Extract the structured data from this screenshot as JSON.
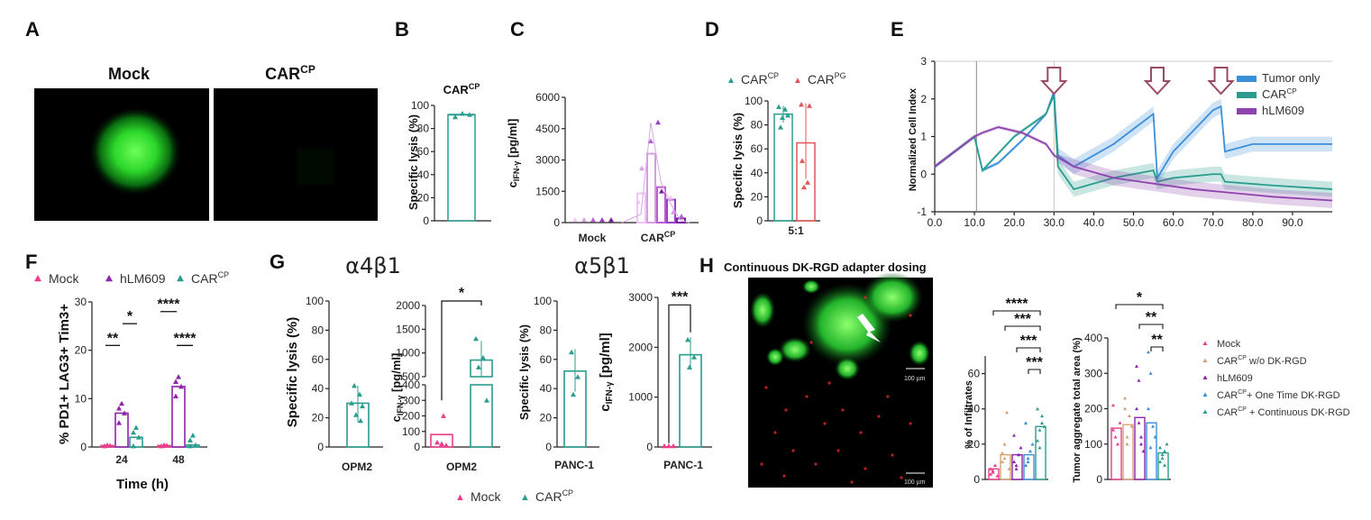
{
  "panels": {
    "A": {
      "label": "A",
      "mock": "Mock",
      "car": "CAR",
      "car_sup": "CP"
    },
    "B": {
      "label": "B",
      "title": "CAR",
      "title_sup": "CP",
      "ylabel": "Specific lysis (%)",
      "yticks": [
        "0",
        "20",
        "40",
        "60",
        "80",
        "100"
      ],
      "color": "#2a9d8f"
    },
    "C": {
      "label": "C",
      "ylabel_main": "c",
      "ylabel_sub": "IFN-γ",
      "ylabel_unit": " [pg/ml]",
      "yticks": [
        "0",
        "1500",
        "3000",
        "4500",
        "6000"
      ],
      "xcat1": "Mock",
      "xcat2": "CAR",
      "xcat2_sup": "CP"
    },
    "D": {
      "label": "D",
      "legend1": "CAR",
      "legend1_sup": "CP",
      "legend2": "CAR",
      "legend2_sup": "PG",
      "ylabel": "Specific lysis (%)",
      "yticks": [
        "0",
        "20",
        "40",
        "60",
        "80",
        "100"
      ],
      "xtick": "5:1"
    },
    "E": {
      "label": "E",
      "ylabel": "Normalized Cell Index",
      "yticks": [
        "-1",
        "0",
        "1",
        "2",
        "3"
      ],
      "xticks": [
        "0.0",
        "10.0",
        "20.0",
        "30.0",
        "40.0",
        "50.0",
        "60.0",
        "70.0",
        "80.0",
        "90.0"
      ],
      "legend": [
        {
          "name": "Tumor only",
          "color": "#3b8fd9"
        },
        {
          "name": "CAR",
          "sup": "CP",
          "color": "#2a9d8f"
        },
        {
          "name": "hLM609",
          "color": "#8e44ad"
        }
      ]
    },
    "F": {
      "label": "F",
      "legend": [
        {
          "name": "Mock",
          "color": "#e83e8c"
        },
        {
          "name": "hLM609",
          "color": "#8e24aa"
        },
        {
          "name": "CAR",
          "sup": "CP",
          "color": "#2a9d8f"
        }
      ],
      "ylabel": "% PD1+ LAG3+ Tim3+",
      "yticks": [
        "0",
        "10",
        "20",
        "30"
      ],
      "xticks": [
        "24",
        "48"
      ],
      "xlabel": "Time (h)",
      "sig": [
        "**",
        "*",
        "****",
        "****"
      ]
    },
    "G": {
      "label": "G",
      "alpha4": "α4β1",
      "alpha5": "α5β1",
      "ylab_lysis": "Specific lysis (%)",
      "ylab_ifn_main": "c",
      "ylab_ifn_sub": "IFN-γ",
      "ylab_ifn_unit": " [pg/ml]",
      "g1_yticks": [
        "0",
        "20",
        "40",
        "60",
        "80",
        "100"
      ],
      "g1_x": "OPM2",
      "g2_yticks_low": [
        "0",
        "100",
        "200",
        "300",
        "400"
      ],
      "g2_yticks_high": [
        "500",
        "1000",
        "1500",
        "2000"
      ],
      "g2_x": "OPM2",
      "g2_sig": "*",
      "g3_yticks": [
        "0",
        "20",
        "40",
        "60",
        "80",
        "100"
      ],
      "g3_x": "PANC-1",
      "g4_yticks": [
        "0",
        "1000",
        "2000",
        "3000"
      ],
      "g4_x": "PANC-1",
      "g4_sig": "***",
      "legend_mock": "Mock",
      "legend_car": "CAR",
      "legend_car_sup": "CP"
    },
    "H": {
      "label": "H",
      "title": "Continuous DK-RGD adapter dosing",
      "scale1": "100 µm",
      "scale2": "100 µm",
      "h1_ylabel": "% of Infiltrates",
      "h1_yticks": [
        "0",
        "20",
        "40",
        "60"
      ],
      "h1_sig": [
        "****",
        "***",
        "***",
        "***"
      ],
      "h2_ylabel": "Tumor aggregate total area (%)",
      "h2_yticks": [
        "0",
        "100",
        "200",
        "300",
        "400"
      ],
      "h2_sig": [
        "*",
        "**",
        "**"
      ],
      "legend": [
        {
          "name": "Mock",
          "color": "#e83e8c"
        },
        {
          "name": "CAR",
          "sup": "CP",
          "suffix": " w/o DK-RGD",
          "color": "#d4a373"
        },
        {
          "name": "hLM609",
          "color": "#8e24aa"
        },
        {
          "name": "CAR",
          "sup": "CP",
          "suffix": "+ One Time DK-RGD",
          "color": "#3b8fd9"
        },
        {
          "name": "CAR",
          "sup": "CP",
          "suffix": " + Continuous DK-RGD",
          "color": "#2a9d8f"
        }
      ]
    }
  },
  "chart_data": [
    {
      "panel": "B",
      "type": "bar",
      "title": "CAR CP",
      "categories": [
        "CAR CP"
      ],
      "values": [
        92
      ],
      "ylabel": "Specific lysis (%)",
      "ylim": [
        0,
        100
      ]
    },
    {
      "panel": "C",
      "type": "bar",
      "categories": [
        "Mock",
        "CAR CP"
      ],
      "series": [
        {
          "values": [
            0,
            1400
          ]
        },
        {
          "values": [
            0,
            3300
          ]
        },
        {
          "values": [
            0,
            1700
          ]
        },
        {
          "values": [
            0,
            1100
          ]
        },
        {
          "values": [
            0,
            200
          ]
        }
      ],
      "ylim": [
        0,
        6000
      ]
    },
    {
      "panel": "D",
      "type": "bar",
      "categories": [
        "5:1"
      ],
      "series": [
        {
          "name": "CAR CP",
          "values": [
            89
          ]
        },
        {
          "name": "CAR PG",
          "values": [
            65
          ]
        }
      ],
      "ylim": [
        0,
        100
      ]
    },
    {
      "panel": "E",
      "type": "line",
      "ylabel": "Normalized Cell Index",
      "xlim": [
        0,
        100
      ],
      "ylim": [
        -1,
        3
      ],
      "series": [
        {
          "name": "Tumor only",
          "x": [
            0,
            10,
            12,
            16,
            22,
            28,
            30,
            31,
            35,
            45,
            55,
            56,
            60,
            70,
            72,
            73,
            80,
            100
          ],
          "y": [
            0.2,
            1.0,
            0.1,
            0.3,
            0.9,
            1.6,
            2.2,
            0.5,
            0.2,
            0.8,
            1.6,
            -0.1,
            0.6,
            1.7,
            1.8,
            0.6,
            0.8,
            0.8
          ]
        },
        {
          "name": "CAR CP",
          "x": [
            0,
            10,
            12,
            20,
            28,
            30,
            31,
            35,
            45,
            55,
            56,
            60,
            70,
            72,
            73,
            85,
            100
          ],
          "y": [
            0.2,
            1.0,
            0.1,
            1.0,
            1.6,
            2.1,
            0.2,
            -0.4,
            -0.1,
            0.1,
            -0.2,
            -0.1,
            0.0,
            0.0,
            -0.2,
            -0.3,
            -0.4
          ]
        },
        {
          "name": "hLM609",
          "x": [
            0,
            10,
            12,
            16,
            22,
            28,
            30,
            35,
            45,
            55,
            65,
            75,
            85,
            100
          ],
          "y": [
            0.2,
            1.0,
            1.1,
            1.25,
            1.1,
            0.8,
            0.5,
            0.2,
            -0.1,
            -0.25,
            -0.4,
            -0.5,
            -0.6,
            -0.7
          ]
        }
      ]
    },
    {
      "panel": "F",
      "type": "bar",
      "categories": [
        "24",
        "48"
      ],
      "series": [
        {
          "name": "Mock",
          "values": [
            0.3,
            0.3
          ]
        },
        {
          "name": "hLM609",
          "values": [
            7,
            12.5
          ]
        },
        {
          "name": "CAR CP",
          "values": [
            2,
            0.4
          ]
        }
      ],
      "ylim": [
        0,
        30
      ]
    },
    {
      "panel": "G1",
      "type": "bar",
      "categories": [
        "OPM2"
      ],
      "values": [
        30
      ],
      "ylim": [
        0,
        100
      ]
    },
    {
      "panel": "G2",
      "type": "bar",
      "categories": [
        "OPM2"
      ],
      "series": [
        {
          "name": "Mock",
          "values": [
            80
          ]
        },
        {
          "name": "CAR CP",
          "values": [
            850
          ]
        }
      ]
    },
    {
      "panel": "G3",
      "type": "bar",
      "categories": [
        "PANC-1"
      ],
      "values": [
        52
      ],
      "ylim": [
        0,
        100
      ]
    },
    {
      "panel": "G4",
      "type": "bar",
      "categories": [
        "PANC-1"
      ],
      "series": [
        {
          "name": "Mock",
          "values": [
            5
          ]
        },
        {
          "name": "CAR CP",
          "values": [
            1850
          ]
        }
      ],
      "ylim": [
        0,
        3000
      ]
    },
    {
      "panel": "H1",
      "type": "bar",
      "ylabel": "% of Infiltrates",
      "categories": [
        "Mock",
        "CAR CP w/o DK-RGD",
        "hLM609",
        "CAR CP+ One Time DK-RGD",
        "CAR CP + Continuous DK-RGD"
      ],
      "values": [
        6,
        14,
        14,
        14,
        30
      ],
      "ylim": [
        0,
        70
      ]
    },
    {
      "panel": "H2",
      "type": "bar",
      "ylabel": "Tumor aggregate total area (%)",
      "categories": [
        "Mock",
        "CAR CP w/o DK-RGD",
        "hLM609",
        "CAR CP+ One Time DK-RGD",
        "CAR CP + Continuous DK-RGD"
      ],
      "values": [
        145,
        155,
        175,
        160,
        75
      ],
      "ylim": [
        0,
        400
      ]
    }
  ]
}
